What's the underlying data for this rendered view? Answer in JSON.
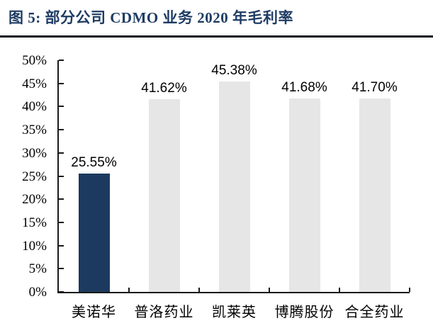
{
  "figure_header": {
    "title": "图 5:  部分公司 CDMO 业务 2020 年毛利率",
    "title_color": "#1F3C64",
    "rule_color": "#0A0F1A"
  },
  "chart_data": {
    "type": "bar",
    "title": "部分公司 CDMO 业务 2020 年毛利率",
    "categories": [
      "美诺华",
      "普洛药业",
      "凯莱英",
      "博腾股份",
      "合全药业"
    ],
    "values": [
      25.55,
      41.62,
      45.38,
      41.68,
      41.7
    ],
    "value_labels": [
      "25.55%",
      "41.62%",
      "45.38%",
      "41.68%",
      "41.70%"
    ],
    "bar_colors": [
      "#1C3A5F",
      "#E6E6E6",
      "#E6E6E6",
      "#E6E6E6",
      "#E6E6E6"
    ],
    "xlabel": "",
    "ylabel": "",
    "ylim": [
      0,
      50
    ],
    "ytick_step": 5,
    "ytick_labels": [
      "0%",
      "5%",
      "10%",
      "15%",
      "20%",
      "25%",
      "30%",
      "35%",
      "40%",
      "45%",
      "50%"
    ],
    "grid": false,
    "legend": false,
    "axis_color": "#1A1A1A",
    "value_label_color": "#000000"
  }
}
